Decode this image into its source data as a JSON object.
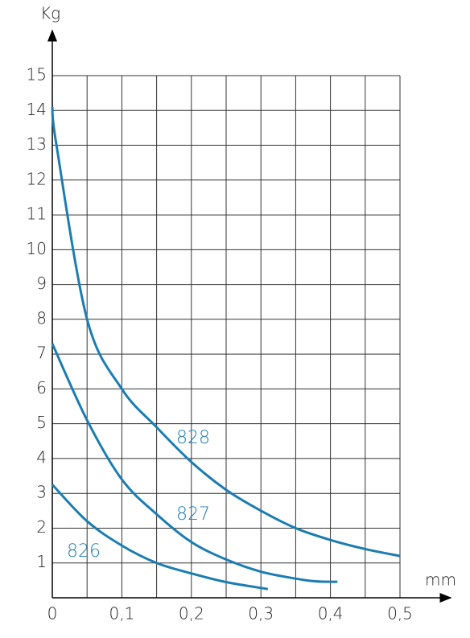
{
  "chart_data": {
    "type": "line",
    "x_label": "mm",
    "y_label": "Kg",
    "xlim": [
      0,
      0.5
    ],
    "ylim": [
      0,
      15
    ],
    "xticks": [
      0,
      {
        "value": 0.1,
        "label": "0,1"
      },
      {
        "value": 0.2,
        "label": "0,2"
      },
      {
        "value": 0.3,
        "label": "0,3"
      },
      {
        "value": 0.4,
        "label": "0,4"
      },
      {
        "value": 0.5,
        "label": "0,5"
      }
    ],
    "xgrid": [
      0.05,
      0.1,
      0.15,
      0.2,
      0.25,
      0.3,
      0.35,
      0.4,
      0.45,
      0.5
    ],
    "yticks": [
      1,
      2,
      3,
      4,
      5,
      6,
      7,
      8,
      9,
      10,
      11,
      12,
      13,
      14,
      15
    ],
    "grid": true,
    "series": [
      {
        "name": "828",
        "color": "#1b7db3",
        "x": [
          0,
          0.006,
          0.05,
          0.1,
          0.15,
          0.2,
          0.25,
          0.3,
          0.35,
          0.4,
          0.45,
          0.5
        ],
        "values": [
          14.1,
          13.0,
          8.0,
          6.0,
          4.9,
          3.9,
          3.1,
          2.5,
          2.0,
          1.66,
          1.4,
          1.2
        ]
      },
      {
        "name": "827",
        "color": "#1b7db3",
        "x": [
          0,
          0.05,
          0.1,
          0.15,
          0.2,
          0.25,
          0.3,
          0.35,
          0.38,
          0.41
        ],
        "values": [
          7.3,
          5.1,
          3.4,
          2.4,
          1.6,
          1.1,
          0.75,
          0.55,
          0.47,
          0.46
        ]
      },
      {
        "name": "826",
        "color": "#1b7db3",
        "x": [
          0,
          0.05,
          0.1,
          0.15,
          0.2,
          0.25,
          0.31
        ],
        "values": [
          3.25,
          2.2,
          1.5,
          1.0,
          0.7,
          0.45,
          0.25
        ]
      }
    ]
  }
}
